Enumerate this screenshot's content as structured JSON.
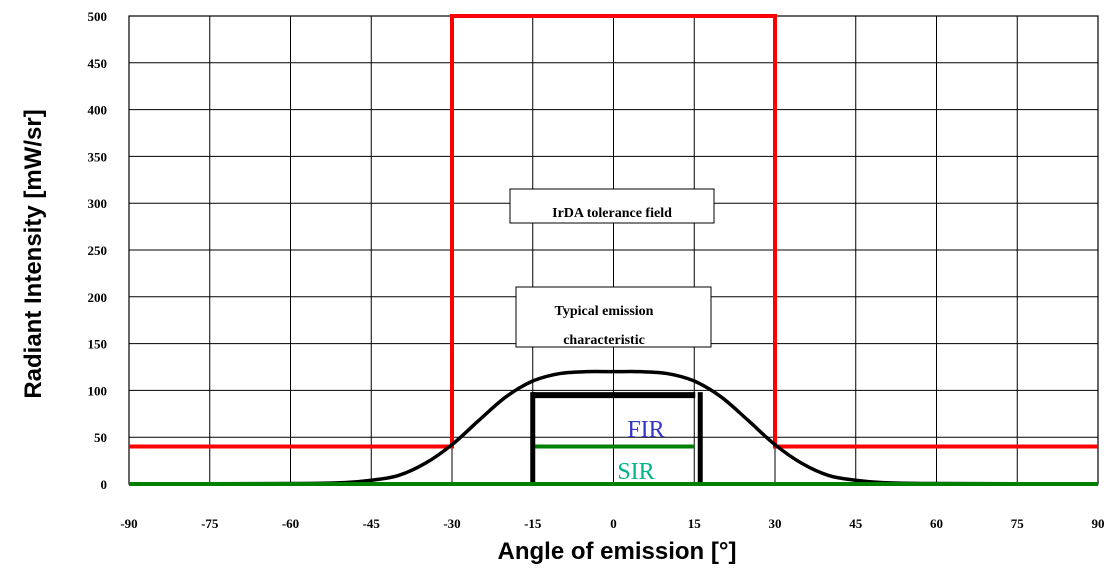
{
  "chart_data": {
    "type": "line",
    "xlabel": "Angle of emission [°]",
    "ylabel": "Radiant Intensity [mW/sr]",
    "xlim": [
      -90,
      90
    ],
    "ylim": [
      0,
      500
    ],
    "x_ticks": [
      "-90",
      "-75",
      "-60",
      "-45",
      "-30",
      "-15",
      "0",
      "15",
      "30",
      "45",
      "60",
      "75",
      "90"
    ],
    "y_ticks": [
      "0",
      "50",
      "100",
      "150",
      "200",
      "250",
      "300",
      "350",
      "400",
      "450",
      "500"
    ],
    "grid": true,
    "series": [
      {
        "key": "irda_tolerance",
        "color": "#ff0000",
        "x": [
          -90,
          -30,
          -30,
          30,
          30,
          90
        ],
        "y": [
          40,
          40,
          500,
          500,
          40,
          40
        ]
      },
      {
        "key": "typical_emission",
        "color": "#000000",
        "x": [
          -90,
          -60,
          -50,
          -45,
          -40,
          -35,
          -30,
          -25,
          -20,
          -15,
          -10,
          -5,
          0,
          5,
          10,
          15,
          20,
          25,
          30,
          35,
          40,
          45,
          50,
          60,
          90
        ],
        "y": [
          0,
          0.5,
          1.5,
          4,
          9,
          22,
          42,
          68,
          93,
          110,
          118,
          120,
          120,
          120,
          118,
          110,
          93,
          68,
          42,
          22,
          9,
          4,
          1.5,
          0.5,
          0
        ]
      },
      {
        "key": "sir",
        "name": "SIR",
        "color": "#008000",
        "x": [
          -90,
          90
        ],
        "y": [
          0,
          0
        ]
      },
      {
        "key": "sir_upper",
        "color": "#008000",
        "x": [
          -15,
          15
        ],
        "y": [
          40,
          40
        ]
      }
    ],
    "fir_box": {
      "x0": -15,
      "x1": 15,
      "top": 95,
      "bottom": 0,
      "color": "#000000"
    },
    "annotations": [
      {
        "key": "tolerance",
        "lines": [
          "IrDA tolerance field"
        ]
      },
      {
        "key": "typical",
        "lines": [
          "Typical emission",
          "characteristic"
        ]
      },
      {
        "key": "fir",
        "text": "FIR",
        "color": "#3333cc"
      },
      {
        "key": "sir",
        "text": "SIR",
        "color": "#00b38a"
      }
    ]
  }
}
